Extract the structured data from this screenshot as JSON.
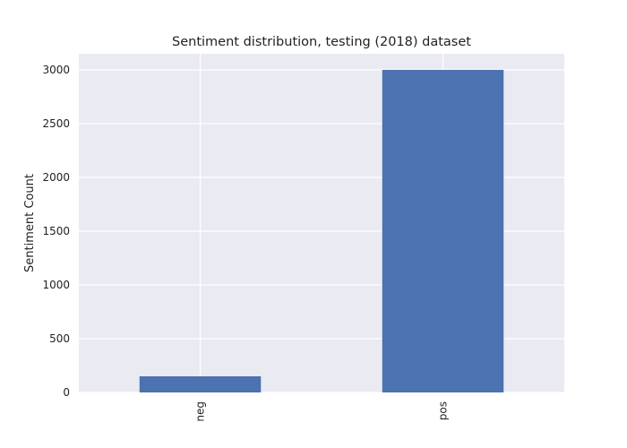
{
  "chart_data": {
    "type": "bar",
    "title": "Sentiment distribution, testing (2018) dataset",
    "xlabel": "",
    "ylabel": "Sentiment Count",
    "categories": [
      "neg",
      "pos"
    ],
    "values": [
      150,
      3000
    ],
    "ylim": [
      0,
      3150
    ],
    "yticks": [
      0,
      500,
      1000,
      1500,
      2000,
      2500,
      3000
    ],
    "grid": true,
    "legend": "none",
    "colors": {
      "bar": "#4C72B0",
      "plot_background": "#EAEAF2",
      "grid": "#FFFFFF",
      "text": "#222222"
    }
  }
}
